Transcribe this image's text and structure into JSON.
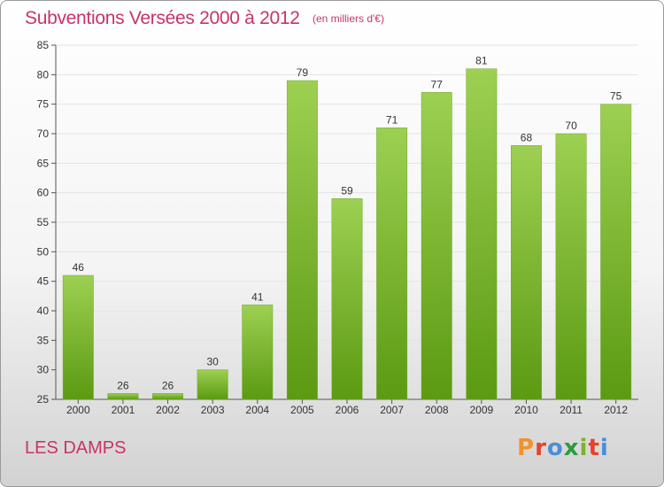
{
  "header": {
    "title": "Subventions Versées 2000 à 2012",
    "unit": "(en milliers d'€)"
  },
  "footer": {
    "commune": "LES DAMPS",
    "logo_letters": [
      "P",
      "r",
      "o",
      "x",
      "i",
      "t",
      "i"
    ],
    "logo_colors": [
      "#f0932b",
      "#e8412c",
      "#4a8fd6",
      "#2b9b3f",
      "#7fb030",
      "#e8412c",
      "#4a8fd6"
    ]
  },
  "colors": {
    "bar_top": "#9dd052",
    "bar_bottom": "#5b9a12",
    "title": "#c8336b",
    "axis": "#555555",
    "grid": "#e3e3e3"
  },
  "chart_data": {
    "type": "bar",
    "categories": [
      "2000",
      "2001",
      "2002",
      "2003",
      "2004",
      "2005",
      "2006",
      "2007",
      "2008",
      "2009",
      "2010",
      "2011",
      "2012"
    ],
    "values": [
      46,
      26,
      26,
      30,
      41,
      79,
      59,
      71,
      77,
      81,
      68,
      70,
      75
    ],
    "ylim": [
      25,
      85
    ],
    "yticks": [
      25,
      30,
      35,
      40,
      45,
      50,
      55,
      60,
      65,
      70,
      75,
      80,
      85
    ],
    "grid": true,
    "legend": "none"
  }
}
